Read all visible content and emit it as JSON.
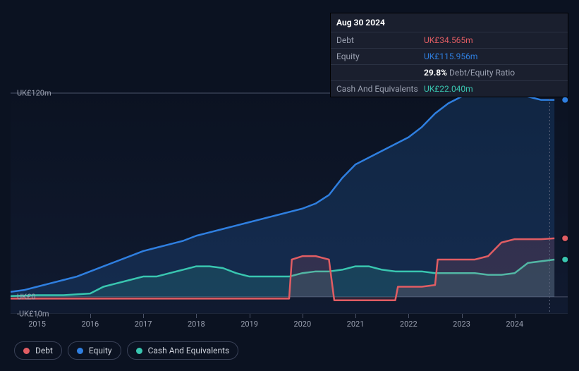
{
  "tooltip": {
    "date": "Aug 30 2024",
    "rows": [
      {
        "label": "Debt",
        "value": "UK£34.565m",
        "color": "#e15d63"
      },
      {
        "label": "Equity",
        "value": "UK£115.956m",
        "color": "#2f7fe0"
      },
      {
        "label": "",
        "pct": "29.8%",
        "ratio_label": "Debt/Equity Ratio"
      },
      {
        "label": "Cash And Equivalents",
        "value": "UK£22.040m",
        "color": "#39c6b0"
      }
    ]
  },
  "chart": {
    "type": "area",
    "plot_bg_top": "#0b1221",
    "plot_bg_bottom": "#101a30",
    "y": {
      "min": -10,
      "max": 125,
      "ticks": [
        {
          "v": 120,
          "label": "UK£120m"
        },
        {
          "v": 0,
          "label": "UK£0"
        },
        {
          "v": -10,
          "label": "-UK£10m"
        }
      ]
    },
    "x": {
      "min": 2014.5,
      "max": 2025,
      "ticks": [
        2015,
        2016,
        2017,
        2018,
        2019,
        2020,
        2021,
        2022,
        2023,
        2024
      ]
    },
    "series": [
      {
        "name": "Equity",
        "color": "#2f7fe0",
        "fill": "rgba(47,127,224,0.18)",
        "line_width": 2.5,
        "data": [
          [
            2014.5,
            3
          ],
          [
            2014.75,
            4
          ],
          [
            2015,
            6
          ],
          [
            2015.25,
            8
          ],
          [
            2015.5,
            10
          ],
          [
            2015.75,
            12
          ],
          [
            2016,
            15
          ],
          [
            2016.25,
            18
          ],
          [
            2016.5,
            21
          ],
          [
            2016.75,
            24
          ],
          [
            2017,
            27
          ],
          [
            2017.25,
            29
          ],
          [
            2017.5,
            31
          ],
          [
            2017.75,
            33
          ],
          [
            2018,
            36
          ],
          [
            2018.25,
            38
          ],
          [
            2018.5,
            40
          ],
          [
            2018.75,
            42
          ],
          [
            2019,
            44
          ],
          [
            2019.25,
            46
          ],
          [
            2019.5,
            48
          ],
          [
            2019.75,
            50
          ],
          [
            2020,
            52
          ],
          [
            2020.25,
            55
          ],
          [
            2020.5,
            60
          ],
          [
            2020.75,
            70
          ],
          [
            2021,
            78
          ],
          [
            2021.25,
            82
          ],
          [
            2021.5,
            86
          ],
          [
            2021.75,
            90
          ],
          [
            2022,
            94
          ],
          [
            2022.25,
            100
          ],
          [
            2022.5,
            108
          ],
          [
            2022.75,
            114
          ],
          [
            2023,
            118
          ],
          [
            2023.25,
            119
          ],
          [
            2023.5,
            119
          ],
          [
            2023.75,
            119
          ],
          [
            2024,
            119
          ],
          [
            2024.25,
            118
          ],
          [
            2024.5,
            116
          ],
          [
            2024.75,
            116
          ]
        ]
      },
      {
        "name": "Debt",
        "color": "#e15d63",
        "fill": "rgba(225,93,99,0.15)",
        "line_width": 2.5,
        "data": [
          [
            2014.5,
            -1
          ],
          [
            2015,
            -1
          ],
          [
            2015.5,
            -1
          ],
          [
            2016,
            -1
          ],
          [
            2016.5,
            -1
          ],
          [
            2017,
            -1
          ],
          [
            2017.5,
            -1
          ],
          [
            2018,
            -1
          ],
          [
            2018.5,
            -1
          ],
          [
            2019,
            -1
          ],
          [
            2019.5,
            -1
          ],
          [
            2019.75,
            -1
          ],
          [
            2019.8,
            22
          ],
          [
            2020,
            24
          ],
          [
            2020.25,
            24
          ],
          [
            2020.5,
            22
          ],
          [
            2020.6,
            -2
          ],
          [
            2021,
            -2
          ],
          [
            2021.5,
            -2
          ],
          [
            2021.75,
            -2
          ],
          [
            2021.8,
            6
          ],
          [
            2022,
            6
          ],
          [
            2022.25,
            6
          ],
          [
            2022.5,
            7
          ],
          [
            2022.55,
            22
          ],
          [
            2022.75,
            22
          ],
          [
            2023,
            22
          ],
          [
            2023.25,
            22
          ],
          [
            2023.5,
            24
          ],
          [
            2023.75,
            32
          ],
          [
            2024,
            34
          ],
          [
            2024.25,
            34
          ],
          [
            2024.5,
            34
          ],
          [
            2024.75,
            34.5
          ]
        ]
      },
      {
        "name": "Cash And Equivalents",
        "color": "#39c6b0",
        "fill": "rgba(57,198,176,0.15)",
        "line_width": 2.5,
        "data": [
          [
            2014.5,
            0.5
          ],
          [
            2015,
            1
          ],
          [
            2015.5,
            1
          ],
          [
            2016,
            2
          ],
          [
            2016.25,
            6
          ],
          [
            2016.5,
            8
          ],
          [
            2016.75,
            10
          ],
          [
            2017,
            12
          ],
          [
            2017.25,
            12
          ],
          [
            2017.5,
            14
          ],
          [
            2017.75,
            16
          ],
          [
            2018,
            18
          ],
          [
            2018.25,
            18
          ],
          [
            2018.5,
            17
          ],
          [
            2018.75,
            14
          ],
          [
            2019,
            12
          ],
          [
            2019.25,
            12
          ],
          [
            2019.5,
            12
          ],
          [
            2019.75,
            12
          ],
          [
            2020,
            14
          ],
          [
            2020.25,
            15
          ],
          [
            2020.5,
            15
          ],
          [
            2020.75,
            16
          ],
          [
            2021,
            18
          ],
          [
            2021.25,
            18
          ],
          [
            2021.5,
            16
          ],
          [
            2021.75,
            15
          ],
          [
            2022,
            15
          ],
          [
            2022.25,
            15
          ],
          [
            2022.5,
            14
          ],
          [
            2022.75,
            14
          ],
          [
            2023,
            14
          ],
          [
            2023.25,
            14
          ],
          [
            2023.5,
            13
          ],
          [
            2023.75,
            13
          ],
          [
            2024,
            14
          ],
          [
            2024.25,
            20
          ],
          [
            2024.5,
            21
          ],
          [
            2024.75,
            22
          ]
        ]
      }
    ],
    "end_markers": [
      {
        "series": "Equity",
        "x": 2024.95,
        "y": 116,
        "color": "#2f7fe0"
      },
      {
        "series": "Debt",
        "x": 2024.95,
        "y": 34.5,
        "color": "#e15d63"
      },
      {
        "series": "Cash",
        "x": 2024.95,
        "y": 22,
        "color": "#39c6b0"
      }
    ]
  },
  "legend": [
    {
      "label": "Debt",
      "color": "#e15d63"
    },
    {
      "label": "Equity",
      "color": "#2f7fe0"
    },
    {
      "label": "Cash And Equivalents",
      "color": "#39c6b0"
    }
  ]
}
